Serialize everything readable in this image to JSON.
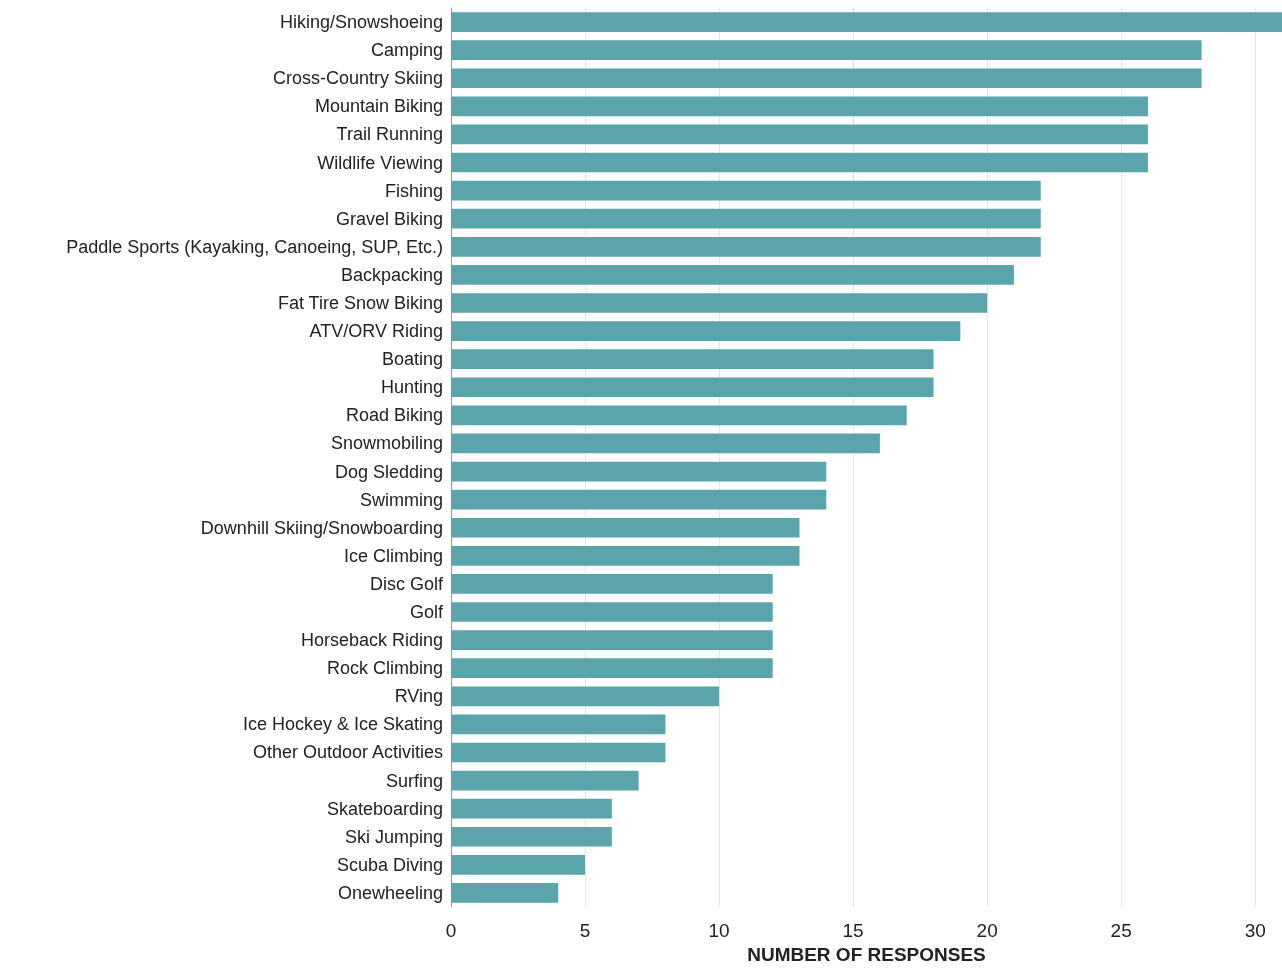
{
  "chart_data": {
    "type": "bar",
    "orientation": "horizontal",
    "xlabel": "NUMBER OF RESPONSES",
    "categories": [
      "Hiking/Snowshoeing",
      "Camping",
      "Cross-Country Skiing",
      "Mountain Biking",
      "Trail Running",
      "Wildlife Viewing",
      "Fishing",
      "Gravel Biking",
      "Paddle Sports (Kayaking, Canoeing, SUP, Etc.)",
      "Backpacking",
      "Fat Tire Snow Biking",
      "ATV/ORV Riding",
      "Boating",
      "Hunting",
      "Road Biking",
      "Snowmobiling",
      "Dog Sledding",
      "Swimming",
      "Downhill Skiing/Snowboarding",
      "Ice Climbing",
      "Disc Golf",
      "Golf",
      "Horseback Riding",
      "Rock Climbing",
      "RVing",
      "Ice Hockey & Ice Skating",
      "Other Outdoor Activities",
      "Surfing",
      "Skateboarding",
      "Ski Jumping",
      "Scuba Diving",
      "Onewheeling"
    ],
    "values": [
      31,
      28,
      28,
      26,
      26,
      26,
      22,
      22,
      22,
      21,
      20,
      19,
      18,
      18,
      17,
      16,
      14,
      14,
      13,
      13,
      12,
      12,
      12,
      12,
      10,
      8,
      8,
      7,
      6,
      6,
      5,
      4
    ],
    "color": "#5ba4ab",
    "xlim": [
      0,
      31
    ],
    "xticks": [
      0,
      5,
      10,
      15,
      20,
      25,
      30
    ],
    "grid": "x"
  }
}
